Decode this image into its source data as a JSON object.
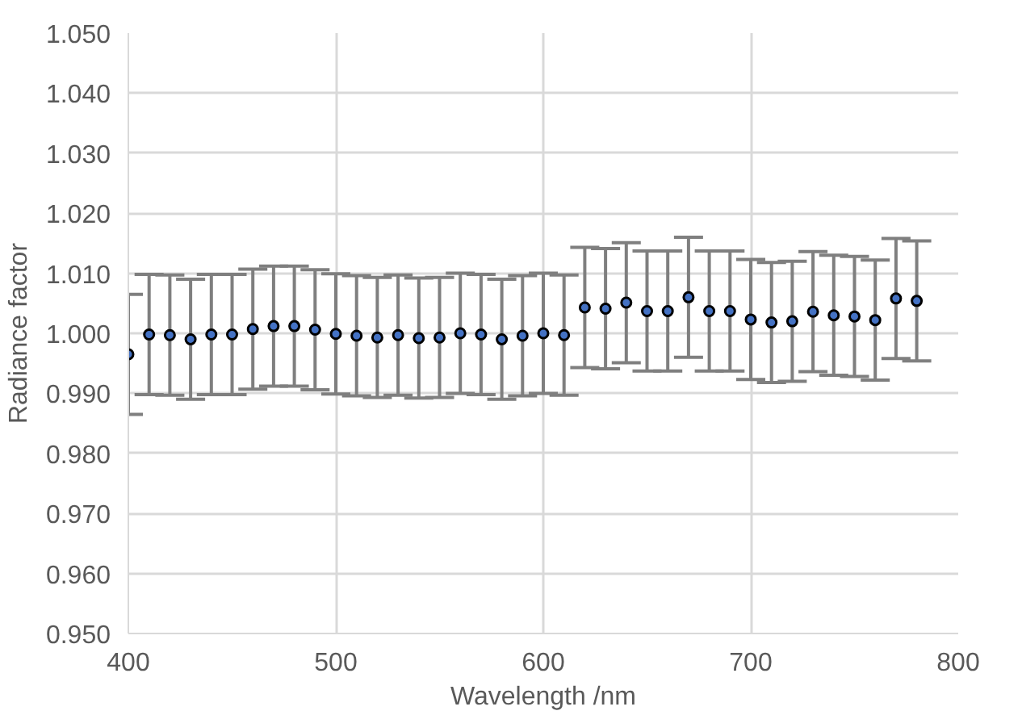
{
  "chart_data": {
    "type": "scatter",
    "xlabel": "Wavelength /nm",
    "ylabel": "Radiance factor",
    "x": [
      400,
      410,
      420,
      430,
      440,
      450,
      460,
      470,
      480,
      490,
      500,
      510,
      520,
      530,
      540,
      550,
      560,
      570,
      580,
      590,
      600,
      610,
      620,
      630,
      640,
      650,
      660,
      670,
      680,
      690,
      700,
      710,
      720,
      730,
      740,
      750,
      760,
      770,
      780
    ],
    "series": [
      {
        "color": "#4472c4",
        "values": [
          0.9965,
          0.9998,
          0.9997,
          0.999,
          0.9998,
          0.9998,
          1.0007,
          1.0012,
          1.0012,
          1.0006,
          0.9999,
          0.9996,
          0.9993,
          0.9997,
          0.9992,
          0.9993,
          1.0,
          0.9998,
          0.999,
          0.9996,
          1.0,
          0.9997,
          1.0043,
          1.0041,
          1.0051,
          1.0037,
          1.0037,
          1.006,
          1.0037,
          1.0037,
          1.0023,
          1.0018,
          1.002,
          1.0036,
          1.003,
          1.0028,
          1.0022,
          1.0058,
          1.0054
        ],
        "errors": [
          0.01,
          0.01,
          0.01,
          0.01,
          0.01,
          0.01,
          0.01,
          0.01,
          0.01,
          0.01,
          0.01,
          0.01,
          0.01,
          0.01,
          0.01,
          0.01,
          0.01,
          0.01,
          0.01,
          0.01,
          0.01,
          0.01,
          0.01,
          0.01,
          0.01,
          0.01,
          0.01,
          0.01,
          0.01,
          0.01,
          0.01,
          0.01,
          0.01,
          0.01,
          0.01,
          0.01,
          0.01,
          0.01,
          0.01
        ]
      }
    ],
    "xlim": [
      400,
      800
    ],
    "xticks": [
      400,
      500,
      600,
      700,
      800
    ],
    "ylim": [
      0.95,
      1.05
    ],
    "yticks": [
      {
        "value": 0.95,
        "label": "0.950"
      },
      {
        "value": 0.96,
        "label": "0.960"
      },
      {
        "value": 0.97,
        "label": "0.970"
      },
      {
        "value": 0.98,
        "label": "0.980"
      },
      {
        "value": 0.99,
        "label": "0.990"
      },
      {
        "value": 1.0,
        "label": "1.000"
      },
      {
        "value": 1.01,
        "label": "1.010"
      },
      {
        "value": 1.02,
        "label": "1.020"
      },
      {
        "value": 1.03,
        "label": "1.030"
      },
      {
        "value": 1.04,
        "label": "1.040"
      },
      {
        "value": 1.05,
        "label": "1.050"
      }
    ],
    "grid": true,
    "marker": "circle"
  }
}
